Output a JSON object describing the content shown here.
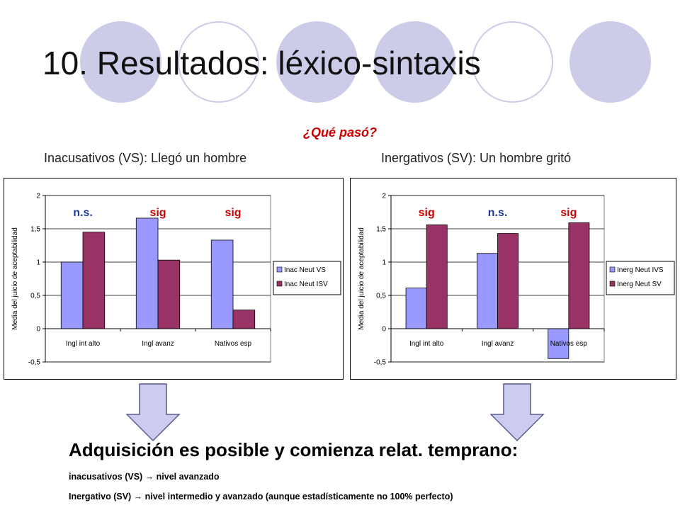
{
  "slide": {
    "title": "10. Resultados: léxico-sintaxis",
    "question": "¿Qué pasó?",
    "subtitle_left": "Inacusativos (VS): Llegó un hombre",
    "subtitle_right": "Inergativos (SV): Un hombre gritó",
    "conclusion": "Adquisición es posible y comienza relat. temprano:",
    "note1": "inacusativos (VS)  →  nivel avanzado",
    "note2": "Inergativo (SV)  →  nivel intermedio y avanzado (aunque estadísticamente no 100% perfecto)"
  },
  "colors": {
    "series1": "#9999ff",
    "series2": "#993366",
    "sig_color": "#cc0000",
    "ns_color": "#1f3ea0",
    "decor": "#cccce8"
  },
  "chart_data": [
    {
      "type": "bar",
      "categories": [
        "Ingl int alto",
        "Ingl avanz",
        "Nativos esp"
      ],
      "series": [
        {
          "name": "Inac Neut VS",
          "values": [
            1.0,
            1.66,
            1.33
          ]
        },
        {
          "name": "Inac Neut ISV",
          "values": [
            1.45,
            1.03,
            0.28
          ]
        }
      ],
      "ylabel": "Media del juicio de aceptabilidad",
      "ylim": [
        -0.5,
        2
      ],
      "yticks": [
        "-0,5",
        "0",
        "0,5",
        "1",
        "1,5",
        "2"
      ],
      "yticks_values": [
        -0.5,
        0,
        0.5,
        1,
        1.5,
        2
      ],
      "annotations": [
        "n.s.",
        "sig",
        "sig"
      ],
      "legend": "right",
      "grid": true
    },
    {
      "type": "bar",
      "categories": [
        "Ingl int alto",
        "Ingl avanz",
        "Nativos esp"
      ],
      "series": [
        {
          "name": "Inerg Neut IVS",
          "values": [
            0.61,
            1.13,
            -0.45
          ]
        },
        {
          "name": "Inerg Neut SV",
          "values": [
            1.56,
            1.43,
            1.59
          ]
        }
      ],
      "ylabel": "Media del juicio de aceptabilidad",
      "ylim": [
        -0.5,
        2
      ],
      "yticks": [
        "-0,5",
        "0",
        "0,5",
        "1",
        "1,5",
        "2"
      ],
      "yticks_values": [
        -0.5,
        0,
        0.5,
        1,
        1.5,
        2
      ],
      "annotations": [
        "sig",
        "n.s.",
        "sig"
      ],
      "legend": "right",
      "grid": true
    }
  ]
}
